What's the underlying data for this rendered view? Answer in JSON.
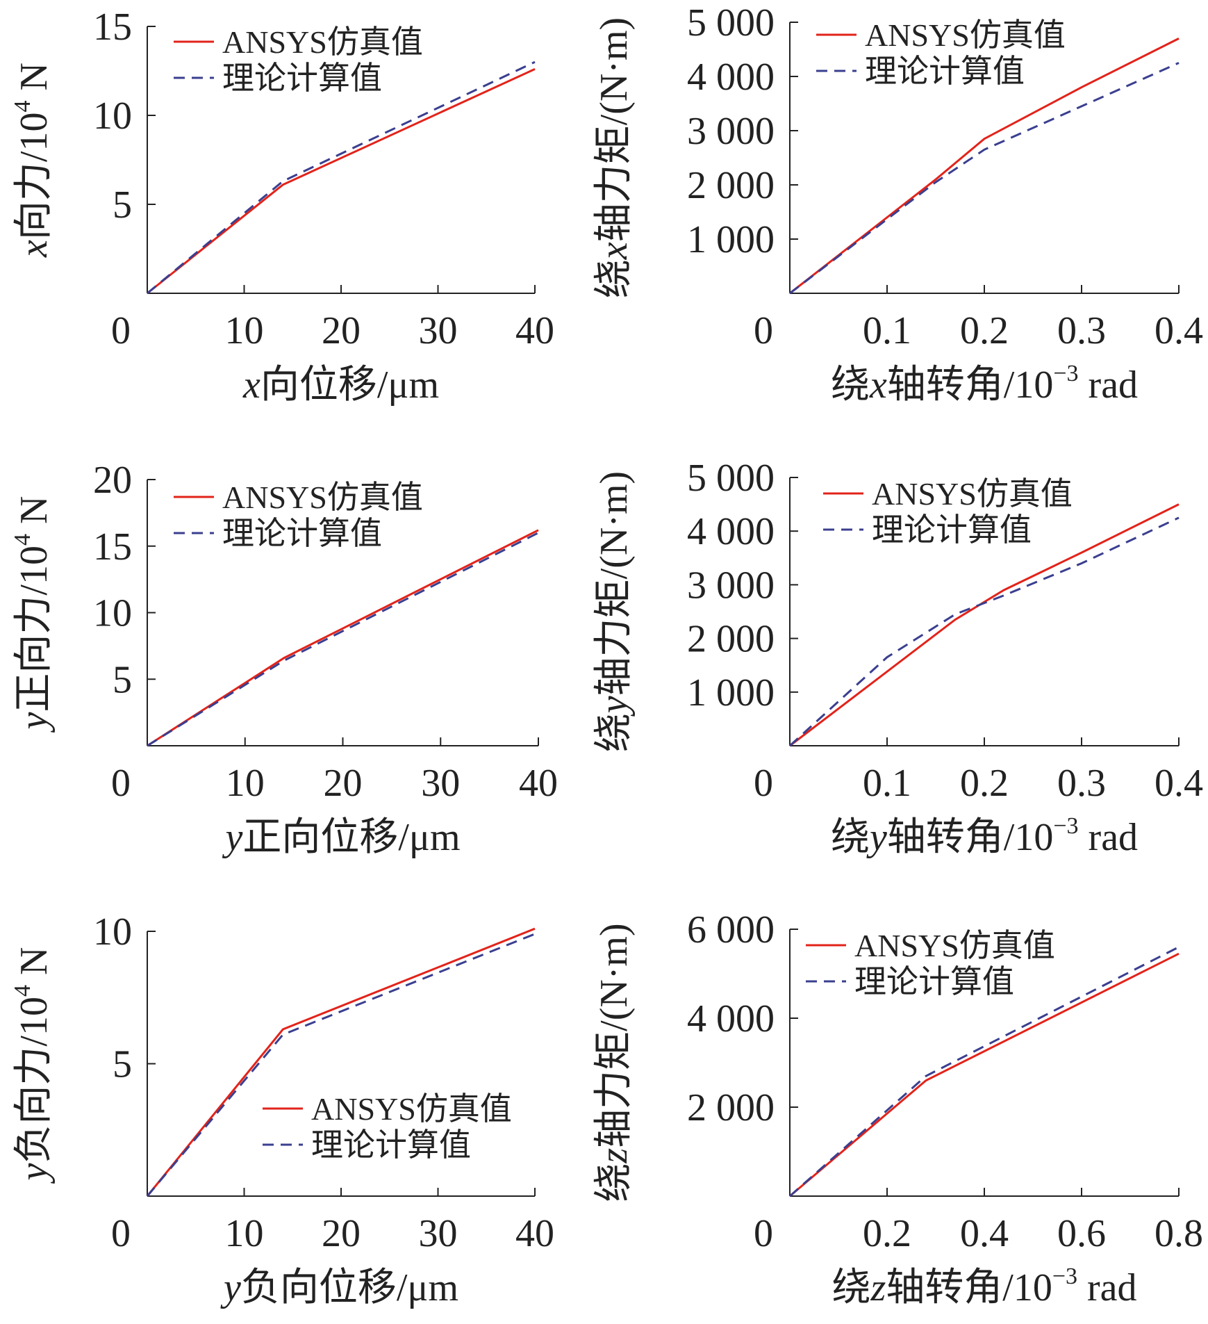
{
  "colors": {
    "ansys": "#e2231a",
    "theory": "#3a3f8f",
    "axis": "#222222"
  },
  "chart_data": [
    {
      "type": "line",
      "panel": "x-force",
      "x": [
        0,
        14,
        40
      ],
      "xlim": [
        0,
        40
      ],
      "xticks": [
        "0",
        "10",
        "20",
        "30",
        "40"
      ],
      "xtick_values": [
        0,
        10,
        20,
        30,
        40
      ],
      "ylim": [
        0,
        15
      ],
      "yticks": [
        "5",
        "10",
        "15"
      ],
      "ytick_values": [
        5,
        10,
        15
      ],
      "xlabel": {
        "prefix": "x",
        "main": "向位移/μm"
      },
      "ylabel": {
        "prefix": "x",
        "main": "向力/10",
        "sup": "4",
        "suffix": " N"
      },
      "legend": {
        "position": "top-left",
        "items": [
          "ANSYS仿真值",
          "理论计算值"
        ]
      },
      "series": [
        {
          "name": "ANSYS仿真值",
          "style": "solid",
          "x": [
            0,
            14,
            16,
            40
          ],
          "y": [
            0,
            6.1,
            6.6,
            12.6
          ]
        },
        {
          "name": "理论计算值",
          "style": "dashed",
          "x": [
            0,
            14,
            40
          ],
          "y": [
            0,
            6.3,
            13.0
          ]
        }
      ]
    },
    {
      "type": "line",
      "panel": "x-moment",
      "xlim": [
        0,
        0.4
      ],
      "xticks": [
        "0",
        "0.1",
        "0.2",
        "0.3",
        "0.4"
      ],
      "xtick_values": [
        0,
        0.1,
        0.2,
        0.3,
        0.4
      ],
      "ylim": [
        0,
        5000
      ],
      "yticks": [
        "1 000",
        "2 000",
        "3 000",
        "4 000",
        "5 000"
      ],
      "ytick_values": [
        1000,
        2000,
        3000,
        4000,
        5000
      ],
      "xlabel": {
        "pre": "绕",
        "prefix": "x",
        "main": "轴转角/10",
        "sup": "−3",
        "suffix": " rad"
      },
      "ylabel": {
        "pre": "绕",
        "prefix": "x",
        "main": "轴力矩/(N·m)"
      },
      "legend": {
        "position": "top-left",
        "items": [
          "ANSYS仿真值",
          "理论计算值"
        ]
      },
      "series": [
        {
          "name": "ANSYS仿真值",
          "style": "solid",
          "x": [
            0,
            0.15,
            0.2,
            0.3,
            0.4
          ],
          "y": [
            0,
            2100,
            2850,
            3800,
            4700
          ]
        },
        {
          "name": "理论计算值",
          "style": "dashed",
          "x": [
            0,
            0.15,
            0.2,
            0.3,
            0.4
          ],
          "y": [
            0,
            2050,
            2650,
            3450,
            4250
          ]
        }
      ]
    },
    {
      "type": "line",
      "panel": "y-positive-force",
      "xlim": [
        0,
        40
      ],
      "xticks": [
        "0",
        "10",
        "20",
        "30",
        "40"
      ],
      "xtick_values": [
        0,
        10,
        20,
        30,
        40
      ],
      "ylim": [
        0,
        20
      ],
      "yticks": [
        "5",
        "10",
        "15",
        "20"
      ],
      "ytick_values": [
        5,
        10,
        15,
        20
      ],
      "xlabel": {
        "prefix": "y",
        "main": "正向位移/μm"
      },
      "ylabel": {
        "prefix": "y",
        "main": "正向力/10",
        "sup": "4",
        "suffix": " N"
      },
      "legend": {
        "position": "top-left",
        "items": [
          "ANSYS仿真值",
          "理论计算值"
        ]
      },
      "series": [
        {
          "name": "ANSYS仿真值",
          "style": "solid",
          "x": [
            0,
            14,
            40
          ],
          "y": [
            0,
            6.6,
            16.2
          ]
        },
        {
          "name": "理论计算值",
          "style": "dashed",
          "x": [
            0,
            14,
            40
          ],
          "y": [
            0,
            6.4,
            16.0
          ]
        }
      ]
    },
    {
      "type": "line",
      "panel": "y-moment",
      "xlim": [
        0,
        0.4
      ],
      "xticks": [
        "0",
        "0.1",
        "0.2",
        "0.3",
        "0.4"
      ],
      "xtick_values": [
        0,
        0.1,
        0.2,
        0.3,
        0.4
      ],
      "ylim": [
        0,
        5000
      ],
      "yticks": [
        "1 000",
        "2 000",
        "3 000",
        "4 000",
        "5 000"
      ],
      "ytick_values": [
        1000,
        2000,
        3000,
        4000,
        5000
      ],
      "xlabel": {
        "pre": "绕",
        "prefix": "y",
        "main": "轴转角/10",
        "sup": "−3",
        "suffix": " rad"
      },
      "ylabel": {
        "pre": "绕",
        "prefix": "y",
        "main": "轴力矩/(N·m)"
      },
      "legend": {
        "position": "top-left",
        "items": [
          "ANSYS仿真值",
          "理论计算值"
        ]
      },
      "series": [
        {
          "name": "ANSYS仿真值",
          "style": "solid",
          "x": [
            0,
            0.17,
            0.22,
            0.3,
            0.4
          ],
          "y": [
            0,
            2350,
            2900,
            3600,
            4500
          ]
        },
        {
          "name": "理论计算值",
          "style": "dashed",
          "x": [
            0,
            0.1,
            0.17,
            0.22,
            0.3,
            0.4
          ],
          "y": [
            0,
            1650,
            2450,
            2800,
            3400,
            4250
          ]
        }
      ]
    },
    {
      "type": "line",
      "panel": "y-negative-force",
      "xlim": [
        0,
        40
      ],
      "xticks": [
        "0",
        "10",
        "20",
        "30",
        "40"
      ],
      "xtick_values": [
        0,
        10,
        20,
        30,
        40
      ],
      "ylim": [
        0,
        10
      ],
      "yticks": [
        "5",
        "10"
      ],
      "ytick_values": [
        5,
        10
      ],
      "xlabel": {
        "prefix": "y",
        "main": "负向位移/μm"
      },
      "ylabel": {
        "prefix": "y",
        "main": "负向力/10",
        "sup": "4",
        "suffix": " N"
      },
      "legend": {
        "position": "bottom-right",
        "items": [
          "ANSYS仿真值",
          "理论计算值"
        ]
      },
      "series": [
        {
          "name": "ANSYS仿真值",
          "style": "solid",
          "x": [
            0,
            14,
            40
          ],
          "y": [
            0,
            6.3,
            10.1
          ]
        },
        {
          "name": "理论计算值",
          "style": "dashed",
          "x": [
            0,
            14,
            40
          ],
          "y": [
            0,
            6.1,
            9.9
          ]
        }
      ]
    },
    {
      "type": "line",
      "panel": "z-moment",
      "xlim": [
        0,
        0.8
      ],
      "xticks": [
        "0",
        "0.2",
        "0.4",
        "0.6",
        "0.8"
      ],
      "xtick_values": [
        0,
        0.2,
        0.4,
        0.6,
        0.8
      ],
      "ylim": [
        0,
        6000
      ],
      "yticks": [
        "2 000",
        "4 000",
        "6 000"
      ],
      "ytick_values": [
        2000,
        4000,
        6000
      ],
      "xlabel": {
        "pre": "绕",
        "prefix": "z",
        "main": "轴转角/10",
        "sup": "−3",
        "suffix": " rad"
      },
      "ylabel": {
        "pre": "绕",
        "prefix": "z",
        "main": "轴力矩/(N·m)"
      },
      "legend": {
        "position": "top-left",
        "items": [
          "ANSYS仿真值",
          "理论计算值"
        ]
      },
      "series": [
        {
          "name": "ANSYS仿真值",
          "style": "solid",
          "x": [
            0,
            0.28,
            0.8
          ],
          "y": [
            0,
            2600,
            5450
          ]
        },
        {
          "name": "理论计算值",
          "style": "dashed",
          "x": [
            0,
            0.28,
            0.8
          ],
          "y": [
            0,
            2700,
            5600
          ]
        }
      ]
    }
  ]
}
